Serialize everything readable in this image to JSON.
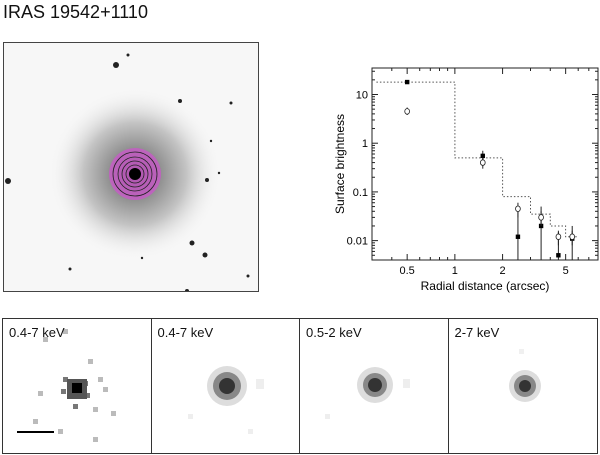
{
  "title": "IRAS 19542+1110",
  "optical_image": {
    "overlay_color": "#cc55cc"
  },
  "xray_panels": [
    {
      "label": "0.4-7 keV",
      "style": "raw"
    },
    {
      "label": "0.4-7 keV",
      "style": "smoothed"
    },
    {
      "label": "0.5-2 keV",
      "style": "smoothed"
    },
    {
      "label": "2-7 keV",
      "style": "smoothed"
    }
  ],
  "chart_data": {
    "type": "scatter",
    "xlabel": "Radial distance (arcsec)",
    "ylabel": "Surface brightness",
    "xscale": "log",
    "yscale": "log",
    "xlim": [
      0.3,
      8
    ],
    "ylim": [
      0.004,
      35
    ],
    "x_ticks": [
      {
        "v": 0.5,
        "label": "0.5"
      },
      {
        "v": 1,
        "label": "1"
      },
      {
        "v": 2,
        "label": "2"
      },
      {
        "v": 5,
        "label": "5"
      }
    ],
    "y_ticks": [
      {
        "v": 10,
        "label": "10"
      },
      {
        "v": 1,
        "label": "1"
      },
      {
        "v": 0.1,
        "label": "0.1"
      },
      {
        "v": 0.01,
        "label": "0.01"
      }
    ],
    "series": [
      {
        "marker": "filled-square",
        "points": [
          {
            "x": 0.5,
            "y": 18,
            "ylo": 18,
            "yhi": 18
          },
          {
            "x": 1.5,
            "y": 0.55,
            "ylo": 0.4,
            "yhi": 0.7
          },
          {
            "x": 2.5,
            "y": 0.012,
            "ylo": 0.004,
            "yhi": 0.05
          },
          {
            "x": 3.5,
            "y": 0.02,
            "ylo": 0.004,
            "yhi": 0.05
          },
          {
            "x": 4.5,
            "y": 0.005,
            "ylo": 0.004,
            "yhi": 0.015
          },
          {
            "x": 5.5,
            "y": 0.011,
            "ylo": 0.004,
            "yhi": 0.02
          }
        ]
      },
      {
        "marker": "open-circle",
        "points": [
          {
            "x": 0.5,
            "y": 4.5,
            "ylo": 3.8,
            "yhi": 5.4
          },
          {
            "x": 1.5,
            "y": 0.4,
            "ylo": 0.3,
            "yhi": 0.5
          },
          {
            "x": 2.5,
            "y": 0.045,
            "ylo": 0.03,
            "yhi": 0.06
          },
          {
            "x": 3.5,
            "y": 0.03,
            "ylo": 0.02,
            "yhi": 0.04
          },
          {
            "x": 4.5,
            "y": 0.012,
            "ylo": 0.008,
            "yhi": 0.016
          },
          {
            "x": 5.5,
            "y": 0.012,
            "ylo": 0.008,
            "yhi": 0.016
          }
        ]
      }
    ],
    "model_step": [
      {
        "x0": 0.32,
        "x1": 1,
        "y": 18
      },
      {
        "x0": 1,
        "x1": 2,
        "y": 0.5
      },
      {
        "x0": 2,
        "x1": 3,
        "y": 0.08
      },
      {
        "x0": 3,
        "x1": 4,
        "y": 0.035
      },
      {
        "x0": 4,
        "x1": 5,
        "y": 0.02
      },
      {
        "x0": 5,
        "x1": 6,
        "y": 0.012
      }
    ]
  }
}
